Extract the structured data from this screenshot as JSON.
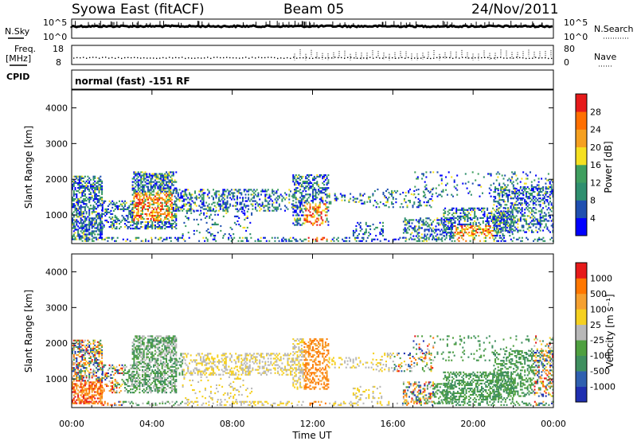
{
  "header": {
    "station": "Syowa East (fitACF)",
    "beam": "Beam 05",
    "date": "24/Nov/2011"
  },
  "panels": {
    "nsky_label": "N.Sky",
    "nsky_ticks": [
      "10^5",
      "10^0"
    ],
    "nsearch_label": "N.Search",
    "nsearch_ticks": [
      "10^5",
      "10^0"
    ],
    "freq_label_1": "Freq.",
    "freq_label_2": "[MHz]",
    "freq_ticks": [
      "18",
      "8"
    ],
    "nave_label": "Nave",
    "nave_ticks": [
      "80",
      "0"
    ],
    "cpid_label": "CPID",
    "cpid_text": "normal (fast) -151 RF"
  },
  "chart_data": [
    {
      "type": "heatmap",
      "name": "power-panel",
      "ylabel": "Slant Range [km]",
      "yticks": [
        "4000",
        "3000",
        "2000",
        "1000"
      ],
      "ylim": [
        200,
        4500
      ],
      "colorbar": {
        "label": "Power [dB]",
        "ticks": [
          "28",
          "24",
          "20",
          "16",
          "12",
          "8",
          "4"
        ],
        "colors": [
          "#0000ff",
          "#1f4fb0",
          "#2f8f6f",
          "#3f9f5f",
          "#f5e020",
          "#f5a020",
          "#ff6f00",
          "#e61a1a"
        ]
      }
    },
    {
      "type": "heatmap",
      "name": "velocity-panel",
      "ylabel": "Slant Range [km]",
      "yticks": [
        "4000",
        "3000",
        "2000",
        "1000"
      ],
      "ylim": [
        200,
        4500
      ],
      "colorbar": {
        "label": "Velocity [m s⁻¹]",
        "ticks": [
          "1000",
          "500",
          "100",
          "25",
          "-25",
          "-100",
          "-500",
          "-1000"
        ],
        "colors": [
          "#1f2fb0",
          "#2f60b0",
          "#3f8f5f",
          "#4fa040",
          "#b8b8b8",
          "#f5d020",
          "#f5a030",
          "#ff7700",
          "#e61a1a"
        ]
      }
    }
  ],
  "xaxis": {
    "label": "Time UT",
    "ticks": [
      "00:00",
      "04:00",
      "08:00",
      "12:00",
      "16:00",
      "20:00",
      "00:00"
    ]
  }
}
